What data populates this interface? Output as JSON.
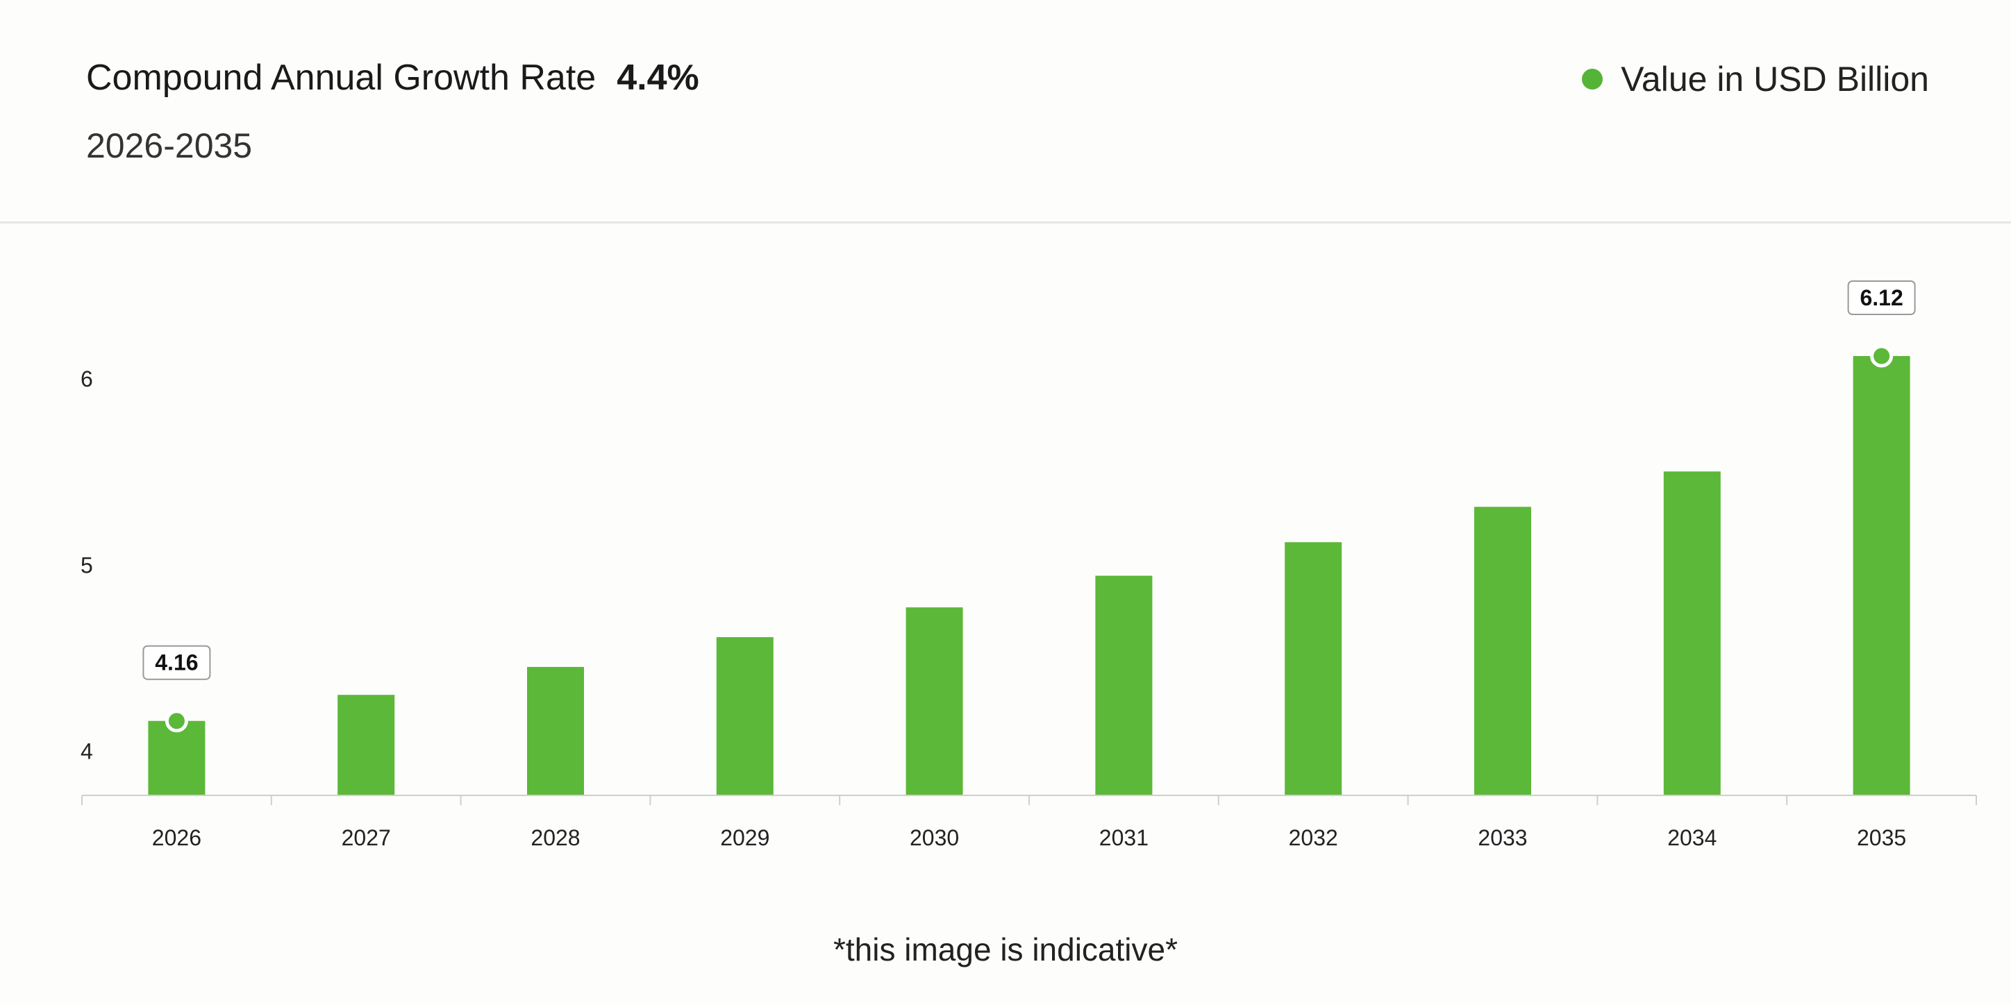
{
  "header": {
    "cagr_label": "Compound Annual Growth Rate",
    "cagr_value": "4.4%",
    "period": "2026-2035"
  },
  "legend": {
    "label": "Value in USD Billion",
    "color": "#54b436"
  },
  "footnote": "*this image is indicative*",
  "colors": {
    "bar": "#5cb838",
    "axis": "#cfcfcf",
    "callout_border": "#9a9a9a"
  },
  "chart_data": {
    "type": "bar",
    "categories": [
      "2026",
      "2027",
      "2028",
      "2029",
      "2030",
      "2031",
      "2032",
      "2033",
      "2034",
      "2035"
    ],
    "series": [
      {
        "name": "Value in USD Billion",
        "values": [
          4.16,
          4.3,
          4.45,
          4.61,
          4.77,
          4.94,
          5.12,
          5.31,
          5.5,
          6.12
        ]
      }
    ],
    "ylim": [
      3.76,
      6.12
    ],
    "yticks": [
      "4",
      "5",
      "6"
    ],
    "ytick_values": [
      4,
      5,
      6
    ],
    "labeled_points": [
      {
        "category": "2026",
        "label": "4.16"
      },
      {
        "category": "2035",
        "label": "6.12"
      }
    ],
    "grid": false
  }
}
